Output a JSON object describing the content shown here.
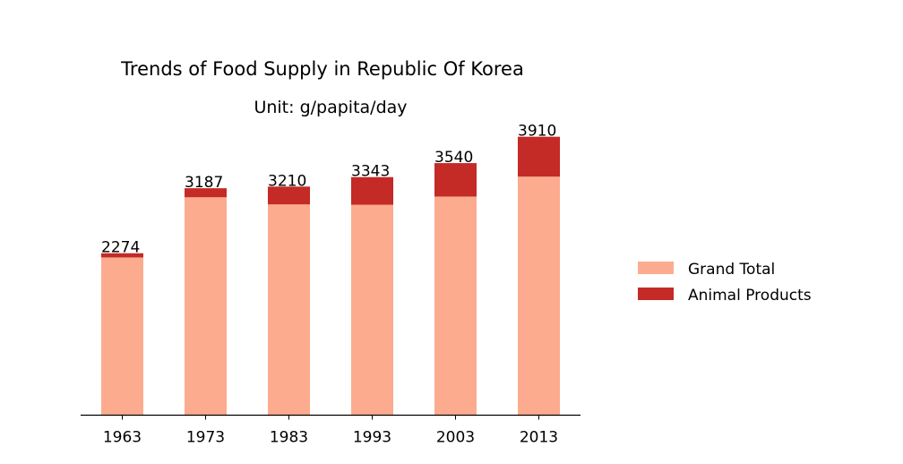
{
  "chart_data": {
    "type": "bar",
    "stacked": true,
    "title": "Trends of Food Supply in Republic Of Korea",
    "subtitle": "Unit: g/papita/day",
    "categories": [
      "1963",
      "1973",
      "1983",
      "1993",
      "2003",
      "2013"
    ],
    "series": [
      {
        "name": "Grand Total",
        "color": "#fcab8f",
        "values": [
          2215,
          3060,
          2960,
          2955,
          3070,
          3350
        ]
      },
      {
        "name": "Animal Products",
        "color": "#c42a26",
        "values": [
          59,
          127,
          250,
          388,
          470,
          560
        ]
      }
    ],
    "totals": [
      2274,
      3187,
      3210,
      3343,
      3540,
      3910
    ],
    "ylim": [
      0,
      4000
    ],
    "legend_position": "right",
    "grid": false
  }
}
